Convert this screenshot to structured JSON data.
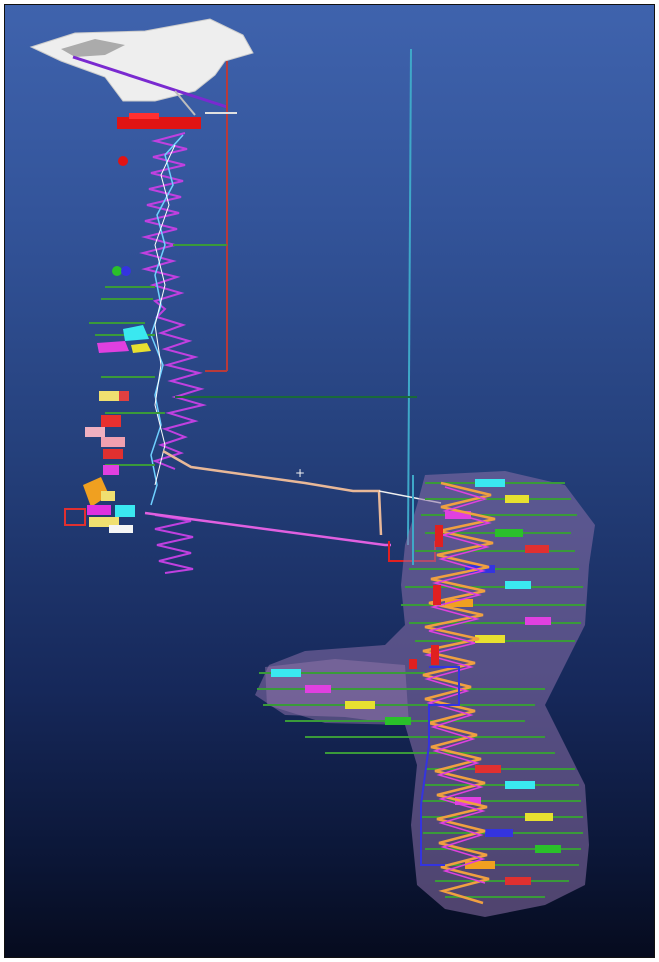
{
  "viewport": {
    "background_top": "#3f63ad",
    "background_bottom": "#060b1e"
  },
  "colors": {
    "surface_terrain": "#eeeeee",
    "vent_shaft": "#3fa8c8",
    "upper_decline": "#b83a3a",
    "spiral_ramp": "#c040e0",
    "zigzag_ramp": "#f0a040",
    "drive_pink": "#e060e0",
    "drive_tan": "#e8b898",
    "drives_green": "#3a9a3a",
    "lower_orebody": "#b070c0"
  },
  "icons": {
    "crosshair": "crosshair-icon"
  },
  "cursor_glyph": "+"
}
